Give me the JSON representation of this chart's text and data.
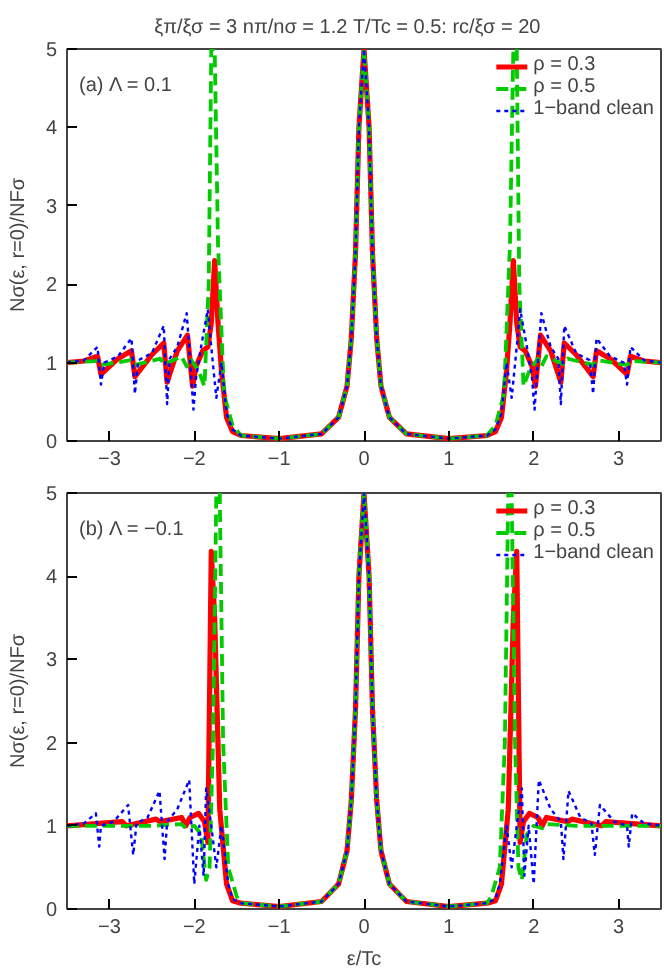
{
  "chart_data": [
    {
      "type": "line",
      "title": "ξπ/ξσ = 3   nπ/nσ = 1.2   T/Tc = 0.5:   rc/ξσ = 20",
      "ylabel": "Nσ(ε, r=0)/NFσ",
      "annotations": [
        "(a) Λ = 0.1"
      ],
      "xlim": [
        -3.5,
        3.5
      ],
      "ylim": [
        0,
        5
      ],
      "xticks": [
        -3,
        -2,
        -1,
        0,
        1,
        2,
        3
      ],
      "yticks": [
        0,
        1,
        2,
        3,
        4,
        5
      ],
      "legend": "top right",
      "grid": false,
      "series": [
        {
          "name": "ρ = 0.3",
          "color": "#ff0000",
          "line_style": "solid",
          "x": [
            -3.5,
            -3.3,
            -3.14,
            -3.1,
            -2.9,
            -2.74,
            -2.7,
            -2.5,
            -2.36,
            -2.32,
            -2.2,
            -2.08,
            -2.02,
            -1.98,
            -1.9,
            -1.84,
            -1.8,
            -1.76,
            -1.72,
            -1.68,
            -1.62,
            -1.55,
            -1.45,
            -1.0,
            -0.5,
            -0.3,
            -0.2,
            -0.15,
            -0.1,
            -0.06,
            0,
            0.06,
            0.1,
            0.15,
            0.2,
            0.3,
            0.5,
            1.0,
            1.45,
            1.55,
            1.62,
            1.68,
            1.72,
            1.76,
            1.8,
            1.84,
            1.9,
            1.98,
            2.02,
            2.08,
            2.2,
            2.32,
            2.36,
            2.5,
            2.7,
            2.74,
            2.9,
            3.1,
            3.14,
            3.3,
            3.5
          ],
          "values": [
            1.0,
            1.02,
            1.08,
            0.85,
            1.05,
            1.15,
            0.82,
            1.1,
            1.25,
            0.75,
            1.15,
            1.35,
            0.7,
            0.95,
            1.15,
            1.2,
            1.5,
            2.3,
            1.5,
            0.9,
            0.3,
            0.12,
            0.07,
            0.03,
            0.09,
            0.3,
            0.7,
            1.3,
            2.4,
            4.0,
            5,
            4.0,
            2.4,
            1.3,
            0.7,
            0.3,
            0.09,
            0.03,
            0.07,
            0.12,
            0.3,
            0.9,
            1.5,
            2.3,
            1.5,
            1.2,
            1.15,
            0.95,
            0.7,
            1.35,
            1.15,
            0.75,
            1.25,
            1.1,
            0.82,
            1.15,
            1.05,
            0.85,
            1.08,
            1.02,
            1.0
          ]
        },
        {
          "name": "ρ = 0.5",
          "color": "#00cc00",
          "line_style": "dashed",
          "x": [
            -3.5,
            -3.15,
            -3.1,
            -2.75,
            -2.7,
            -2.4,
            -2.35,
            -2.15,
            -2.09,
            -2.05,
            -1.95,
            -1.88,
            -1.83,
            -1.8,
            -1.76,
            -1.72,
            -1.65,
            -1.55,
            -1.45,
            -1.0,
            -0.5,
            -0.3,
            -0.2,
            -0.15,
            -0.1,
            -0.06,
            0,
            0.06,
            0.1,
            0.15,
            0.2,
            0.3,
            0.5,
            1.0,
            1.45,
            1.55,
            1.65,
            1.72,
            1.76,
            1.8,
            1.83,
            1.88,
            1.95,
            2.05,
            2.09,
            2.15,
            2.35,
            2.4,
            2.7,
            2.75,
            3.1,
            3.15,
            3.5
          ],
          "values": [
            1.0,
            1.02,
            0.97,
            1.03,
            0.97,
            1.05,
            0.98,
            1.08,
            0.95,
            1.05,
            0.9,
            0.7,
            2.0,
            5,
            5,
            2.5,
            0.6,
            0.2,
            0.07,
            0.03,
            0.09,
            0.3,
            0.7,
            1.3,
            2.4,
            4.0,
            5,
            4.0,
            2.4,
            1.3,
            0.7,
            0.3,
            0.09,
            0.03,
            0.07,
            0.2,
            0.6,
            2.5,
            5,
            5,
            2.0,
            0.7,
            0.9,
            1.05,
            0.95,
            1.08,
            0.98,
            1.05,
            0.97,
            1.03,
            0.97,
            1.02,
            1.0
          ]
        },
        {
          "name": "1−band clean",
          "color": "#0000ff",
          "line_style": "dotted",
          "x": [
            -3.5,
            -3.3,
            -3.14,
            -3.1,
            -3.06,
            -2.9,
            -2.74,
            -2.7,
            -2.66,
            -2.5,
            -2.36,
            -2.32,
            -2.29,
            -2.2,
            -2.09,
            -2.06,
            -2.01,
            -1.98,
            -1.92,
            -1.84,
            -1.8,
            -1.74,
            -1.68,
            -1.62,
            -1.55,
            -1.45,
            -1.0,
            -0.5,
            -0.3,
            -0.2,
            -0.15,
            -0.1,
            -0.06,
            0,
            0.06,
            0.1,
            0.15,
            0.2,
            0.3,
            0.5,
            1.0,
            1.45,
            1.55,
            1.62,
            1.68,
            1.74,
            1.8,
            1.84,
            1.92,
            1.98,
            2.01,
            2.06,
            2.09,
            2.2,
            2.29,
            2.32,
            2.36,
            2.5,
            2.66,
            2.7,
            2.74,
            2.9,
            3.06,
            3.1,
            3.14,
            3.3,
            3.5
          ],
          "values": [
            1.0,
            1.03,
            1.2,
            0.72,
            1.0,
            1.08,
            1.31,
            0.6,
            1.03,
            1.12,
            1.47,
            0.47,
            1.05,
            1.2,
            1.63,
            1.2,
            0.4,
            0.8,
            1.2,
            1.68,
            1.2,
            0.55,
            1.0,
            0.35,
            0.15,
            0.07,
            0.03,
            0.09,
            0.3,
            0.7,
            1.3,
            2.4,
            4.0,
            5,
            4.0,
            2.4,
            1.3,
            0.7,
            0.3,
            0.09,
            0.03,
            0.07,
            0.15,
            0.35,
            1.0,
            0.55,
            1.2,
            1.68,
            1.2,
            0.8,
            0.4,
            1.2,
            1.63,
            1.2,
            1.05,
            0.47,
            1.47,
            1.12,
            1.03,
            0.6,
            1.31,
            1.08,
            1.0,
            0.72,
            1.2,
            1.03,
            1.0
          ]
        }
      ]
    },
    {
      "type": "line",
      "xlabel": "ε/Tc",
      "ylabel": "Nσ(ε, r=0)/NFσ",
      "annotations": [
        "(b) Λ = −0.1"
      ],
      "xlim": [
        -3.5,
        3.5
      ],
      "ylim": [
        0,
        5
      ],
      "xticks": [
        -3,
        -2,
        -1,
        0,
        1,
        2,
        3
      ],
      "yticks": [
        0,
        1,
        2,
        3,
        4,
        5
      ],
      "legend": "top right",
      "grid": false,
      "series": [
        {
          "name": "ρ = 0.3",
          "color": "#ff0000",
          "line_style": "solid",
          "x": [
            -3.5,
            -2.85,
            -2.8,
            -2.45,
            -2.4,
            -2.15,
            -2.1,
            -2.05,
            -1.95,
            -1.88,
            -1.84,
            -1.8,
            -1.76,
            -1.7,
            -1.62,
            -1.55,
            -1.45,
            -1.0,
            -0.5,
            -0.3,
            -0.2,
            -0.15,
            -0.1,
            -0.06,
            0,
            0.06,
            0.1,
            0.15,
            0.2,
            0.3,
            0.5,
            1.0,
            1.45,
            1.55,
            1.62,
            1.7,
            1.76,
            1.8,
            1.84,
            1.88,
            1.95,
            2.05,
            2.1,
            2.15,
            2.4,
            2.45,
            2.8,
            2.85,
            3.5
          ],
          "values": [
            1.0,
            1.05,
            1.0,
            1.08,
            1.05,
            1.1,
            1.0,
            1.1,
            1.15,
            1.05,
            0.8,
            4.3,
            3.5,
            1.2,
            0.3,
            0.1,
            0.07,
            0.03,
            0.09,
            0.3,
            0.7,
            1.3,
            2.4,
            4.0,
            5,
            4.0,
            2.4,
            1.3,
            0.7,
            0.3,
            0.09,
            0.03,
            0.07,
            0.1,
            0.3,
            1.2,
            3.5,
            4.3,
            0.8,
            1.05,
            1.15,
            1.1,
            1.0,
            1.1,
            1.05,
            1.08,
            1.0,
            1.05,
            1.0
          ]
        },
        {
          "name": "ρ = 0.5",
          "color": "#00cc00",
          "line_style": "dashed",
          "x": [
            -3.5,
            -2.5,
            -2.15,
            -2.1,
            -2.0,
            -1.92,
            -1.86,
            -1.82,
            -1.78,
            -1.74,
            -1.7,
            -1.66,
            -1.6,
            -1.5,
            -1.45,
            -1.0,
            -0.5,
            -0.3,
            -0.2,
            -0.15,
            -0.1,
            -0.06,
            0,
            0.06,
            0.1,
            0.15,
            0.2,
            0.3,
            0.5,
            1.0,
            1.45,
            1.5,
            1.6,
            1.66,
            1.7,
            1.74,
            1.78,
            1.82,
            1.86,
            1.92,
            2.0,
            2.1,
            2.15,
            2.5,
            3.5
          ],
          "values": [
            1.0,
            1.0,
            1.02,
            0.97,
            1.0,
            0.9,
            0.35,
            0.5,
            2.0,
            5,
            5,
            2.0,
            0.5,
            0.15,
            0.07,
            0.03,
            0.09,
            0.3,
            0.7,
            1.3,
            2.4,
            4.0,
            5,
            4.0,
            2.4,
            1.3,
            0.7,
            0.3,
            0.09,
            0.03,
            0.07,
            0.15,
            0.5,
            2.0,
            5,
            5,
            2.0,
            0.5,
            0.35,
            0.9,
            1.0,
            0.97,
            1.02,
            1.0,
            1.0
          ]
        },
        {
          "name": "1−band clean",
          "color": "#0000ff",
          "line_style": "dotted",
          "x": [
            -3.5,
            -3.3,
            -3.16,
            -3.12,
            -3.1,
            -2.95,
            -2.78,
            -2.72,
            -2.68,
            -2.55,
            -2.41,
            -2.35,
            -2.32,
            -2.2,
            -2.06,
            -2.0,
            -1.94,
            -1.89,
            -1.86,
            -1.8,
            -1.74,
            -1.68,
            -1.6,
            -1.55,
            -1.45,
            -1.0,
            -0.5,
            -0.3,
            -0.2,
            -0.15,
            -0.1,
            -0.06,
            0,
            0.06,
            0.1,
            0.15,
            0.2,
            0.3,
            0.5,
            1.0,
            1.45,
            1.55,
            1.6,
            1.68,
            1.74,
            1.8,
            1.86,
            1.89,
            1.94,
            2.0,
            2.06,
            2.2,
            2.32,
            2.35,
            2.41,
            2.55,
            2.68,
            2.72,
            2.78,
            2.95,
            3.1,
            3.12,
            3.16,
            3.3,
            3.5
          ],
          "values": [
            1.0,
            1.03,
            1.15,
            0.75,
            1.0,
            1.05,
            1.25,
            0.65,
            1.03,
            1.1,
            1.42,
            0.6,
            1.05,
            1.2,
            1.55,
            0.3,
            1.0,
            0.4,
            1.45,
            1.0,
            0.5,
            1.0,
            0.3,
            0.12,
            0.07,
            0.03,
            0.09,
            0.3,
            0.7,
            1.3,
            2.4,
            4.0,
            5,
            4.0,
            2.4,
            1.3,
            0.7,
            0.3,
            0.09,
            0.03,
            0.07,
            0.12,
            0.3,
            1.0,
            0.5,
            1.0,
            1.45,
            0.4,
            1.0,
            0.3,
            1.55,
            1.2,
            1.05,
            0.6,
            1.42,
            1.1,
            1.03,
            0.65,
            1.25,
            1.05,
            1.0,
            0.75,
            1.15,
            1.03,
            1.0
          ]
        }
      ]
    }
  ]
}
